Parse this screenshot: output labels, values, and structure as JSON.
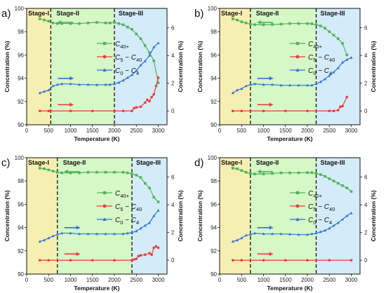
{
  "shared": {
    "xlabel": "Temperature (K)",
    "ylabel_left": "Concentration (%)",
    "ylabel_right": "Concentration (%)",
    "xlim": [
      0,
      3200
    ],
    "ylim_left": [
      90,
      100
    ],
    "ylim_right": [
      -1,
      7.4
    ],
    "x_ticks": [
      0,
      500,
      1000,
      1500,
      2000,
      2500,
      3000
    ],
    "y_left_ticks": [
      90,
      92,
      94,
      96,
      98,
      100
    ],
    "y_right_ticks": [
      0,
      2,
      4,
      6
    ],
    "stage_labels": [
      "Stage-I",
      "Stage-II",
      "Stage-III"
    ],
    "stage_colors": [
      "#f6efb2",
      "#d6f7c6",
      "#d4ebf9"
    ],
    "colors": {
      "c40": "#4fb35a",
      "c5": "#ec3b3b",
      "c0": "#2f72d6"
    },
    "legend": {
      "c40": {
        "base": "C",
        "sub": "40+"
      },
      "c5": {
        "base": "C",
        "sub1": "5",
        "mid": " ~ C",
        "sub2": "40"
      },
      "c0": {
        "base": "C",
        "sub1": "0",
        "mid": " ~ C",
        "sub2": "4"
      }
    }
  },
  "chart_data": [
    {
      "panel": "a)",
      "type": "line",
      "stage_boundaries": [
        550,
        2000
      ],
      "series": [
        {
          "name": "C40+",
          "axis": "left",
          "key": "c40",
          "points": [
            [
              300,
              99.1
            ],
            [
              400,
              99.0
            ],
            [
              500,
              98.9
            ],
            [
              600,
              98.75
            ],
            [
              700,
              98.7
            ],
            [
              800,
              98.7
            ],
            [
              1000,
              98.7
            ],
            [
              1200,
              98.7
            ],
            [
              1400,
              98.75
            ],
            [
              1600,
              98.8
            ],
            [
              1800,
              98.75
            ],
            [
              1900,
              98.75
            ],
            [
              2000,
              98.8
            ],
            [
              2100,
              98.7
            ],
            [
              2200,
              98.6
            ],
            [
              2300,
              98.4
            ],
            [
              2400,
              98.2
            ],
            [
              2500,
              97.8
            ],
            [
              2600,
              97.4
            ],
            [
              2700,
              96.8
            ],
            [
              2800,
              96.2
            ],
            [
              2900,
              95.5
            ],
            [
              3000,
              93.6
            ]
          ]
        },
        {
          "name": "C5 ~ C40",
          "axis": "right",
          "key": "c5",
          "points": [
            [
              300,
              0
            ],
            [
              500,
              0
            ],
            [
              1000,
              0
            ],
            [
              1500,
              0
            ],
            [
              2000,
              0
            ],
            [
              2200,
              0
            ],
            [
              2400,
              0
            ],
            [
              2450,
              0.2
            ],
            [
              2500,
              0.25
            ],
            [
              2600,
              0.3
            ],
            [
              2700,
              0.6
            ],
            [
              2750,
              0.8
            ],
            [
              2800,
              0.7
            ],
            [
              2850,
              1.0
            ],
            [
              2900,
              1.2
            ],
            [
              2950,
              1.8
            ],
            [
              3000,
              2.4
            ]
          ]
        },
        {
          "name": "C0 ~ C4",
          "axis": "right",
          "key": "c0",
          "points": [
            [
              300,
              1.3
            ],
            [
              400,
              1.4
            ],
            [
              500,
              1.5
            ],
            [
              600,
              1.8
            ],
            [
              700,
              1.9
            ],
            [
              800,
              1.95
            ],
            [
              1000,
              1.95
            ],
            [
              1200,
              1.9
            ],
            [
              1400,
              1.9
            ],
            [
              1600,
              1.88
            ],
            [
              1800,
              1.9
            ],
            [
              1900,
              1.9
            ],
            [
              2000,
              1.95
            ],
            [
              2100,
              2.05
            ],
            [
              2200,
              2.2
            ],
            [
              2300,
              2.4
            ],
            [
              2400,
              2.6
            ],
            [
              2500,
              2.9
            ],
            [
              2600,
              3.3
            ],
            [
              2700,
              3.6
            ],
            [
              2800,
              4.0
            ],
            [
              2900,
              4.6
            ],
            [
              3000,
              4.9
            ]
          ]
        }
      ]
    },
    {
      "panel": "b)",
      "type": "line",
      "stage_boundaries": [
        700,
        2200
      ],
      "series": [
        {
          "name": "C40+",
          "axis": "left",
          "key": "c40",
          "points": [
            [
              300,
              99.1
            ],
            [
              400,
              99.0
            ],
            [
              500,
              98.85
            ],
            [
              600,
              98.75
            ],
            [
              700,
              98.65
            ],
            [
              800,
              98.6
            ],
            [
              1000,
              98.6
            ],
            [
              1200,
              98.62
            ],
            [
              1400,
              98.65
            ],
            [
              1600,
              98.7
            ],
            [
              1800,
              98.7
            ],
            [
              2000,
              98.7
            ],
            [
              2100,
              98.68
            ],
            [
              2200,
              98.6
            ],
            [
              2300,
              98.5
            ],
            [
              2400,
              98.3
            ],
            [
              2500,
              98.0
            ],
            [
              2600,
              97.7
            ],
            [
              2700,
              97.4
            ],
            [
              2800,
              97.0
            ],
            [
              2900,
              96.0
            ]
          ]
        },
        {
          "name": "C5 ~ C40",
          "axis": "right",
          "key": "c5",
          "points": [
            [
              300,
              0
            ],
            [
              500,
              0
            ],
            [
              1000,
              0
            ],
            [
              1500,
              0
            ],
            [
              2000,
              0
            ],
            [
              2500,
              0
            ],
            [
              2600,
              0
            ],
            [
              2700,
              0.05
            ],
            [
              2750,
              0.3
            ],
            [
              2800,
              0.35
            ],
            [
              2900,
              1.0
            ]
          ]
        },
        {
          "name": "C0 ~ C4",
          "axis": "right",
          "key": "c0",
          "points": [
            [
              300,
              1.3
            ],
            [
              400,
              1.5
            ],
            [
              500,
              1.6
            ],
            [
              600,
              1.8
            ],
            [
              700,
              1.9
            ],
            [
              800,
              1.95
            ],
            [
              1000,
              1.9
            ],
            [
              1200,
              1.9
            ],
            [
              1400,
              1.85
            ],
            [
              1600,
              1.85
            ],
            [
              1800,
              1.85
            ],
            [
              2000,
              1.85
            ],
            [
              2100,
              1.85
            ],
            [
              2200,
              1.95
            ],
            [
              2300,
              2.1
            ],
            [
              2400,
              2.3
            ],
            [
              2500,
              2.55
            ],
            [
              2600,
              2.8
            ],
            [
              2700,
              3.1
            ],
            [
              2800,
              3.5
            ],
            [
              2900,
              3.7
            ],
            [
              3000,
              3.85
            ]
          ]
        }
      ]
    },
    {
      "panel": "c)",
      "type": "line",
      "stage_boundaries": [
        700,
        2400
      ],
      "series": [
        {
          "name": "C40+",
          "axis": "left",
          "key": "c40",
          "points": [
            [
              300,
              99.1
            ],
            [
              400,
              99.05
            ],
            [
              500,
              98.95
            ],
            [
              600,
              98.85
            ],
            [
              700,
              98.75
            ],
            [
              800,
              98.7
            ],
            [
              1000,
              98.7
            ],
            [
              1200,
              98.7
            ],
            [
              1400,
              98.75
            ],
            [
              1600,
              98.75
            ],
            [
              1800,
              98.75
            ],
            [
              2000,
              98.75
            ],
            [
              2200,
              98.75
            ],
            [
              2300,
              98.7
            ],
            [
              2400,
              98.6
            ],
            [
              2500,
              98.5
            ],
            [
              2600,
              98.3
            ],
            [
              2700,
              97.8
            ],
            [
              2800,
              97.4
            ],
            [
              2900,
              96.6
            ],
            [
              3000,
              96.2
            ]
          ]
        },
        {
          "name": "C5 ~ C40",
          "axis": "right",
          "key": "c5",
          "points": [
            [
              300,
              0
            ],
            [
              500,
              0
            ],
            [
              1000,
              0
            ],
            [
              1500,
              0
            ],
            [
              2000,
              0
            ],
            [
              2400,
              0
            ],
            [
              2450,
              0.05
            ],
            [
              2500,
              0.1
            ],
            [
              2550,
              0.3
            ],
            [
              2600,
              0.35
            ],
            [
              2700,
              0.4
            ],
            [
              2800,
              0.5
            ],
            [
              2850,
              0.4
            ],
            [
              2900,
              0.9
            ],
            [
              2950,
              1.0
            ],
            [
              3000,
              0.9
            ]
          ]
        },
        {
          "name": "C0 ~ C4",
          "axis": "right",
          "key": "c0",
          "points": [
            [
              300,
              1.35
            ],
            [
              400,
              1.45
            ],
            [
              500,
              1.6
            ],
            [
              600,
              1.75
            ],
            [
              700,
              1.85
            ],
            [
              800,
              1.95
            ],
            [
              1000,
              1.95
            ],
            [
              1200,
              1.9
            ],
            [
              1400,
              1.9
            ],
            [
              1600,
              1.9
            ],
            [
              1800,
              1.9
            ],
            [
              2000,
              1.9
            ],
            [
              2200,
              1.9
            ],
            [
              2300,
              1.95
            ],
            [
              2400,
              2.0
            ],
            [
              2500,
              2.1
            ],
            [
              2600,
              2.3
            ],
            [
              2700,
              2.5
            ],
            [
              2800,
              2.7
            ],
            [
              2900,
              3.2
            ],
            [
              3000,
              3.6
            ]
          ]
        }
      ]
    },
    {
      "panel": "d)",
      "type": "line",
      "stage_boundaries": [
        700,
        2200
      ],
      "series": [
        {
          "name": "C40+",
          "axis": "left",
          "key": "c40",
          "points": [
            [
              300,
              99.1
            ],
            [
              400,
              99.05
            ],
            [
              500,
              98.9
            ],
            [
              600,
              98.75
            ],
            [
              700,
              98.65
            ],
            [
              800,
              98.6
            ],
            [
              1000,
              98.6
            ],
            [
              1200,
              98.65
            ],
            [
              1400,
              98.7
            ],
            [
              1600,
              98.7
            ],
            [
              1800,
              98.7
            ],
            [
              2000,
              98.72
            ],
            [
              2100,
              98.72
            ],
            [
              2200,
              98.65
            ],
            [
              2300,
              98.55
            ],
            [
              2400,
              98.4
            ],
            [
              2500,
              98.2
            ],
            [
              2600,
              98.0
            ],
            [
              2700,
              97.8
            ],
            [
              2800,
              97.6
            ],
            [
              2900,
              97.4
            ],
            [
              3000,
              97.1
            ]
          ]
        },
        {
          "name": "C5 ~ C40",
          "axis": "right",
          "key": "c5",
          "points": [
            [
              300,
              0
            ],
            [
              500,
              0
            ],
            [
              1000,
              0
            ],
            [
              1500,
              0
            ],
            [
              2000,
              0
            ],
            [
              2500,
              0
            ],
            [
              3000,
              0
            ]
          ]
        },
        {
          "name": "C0 ~ C4",
          "axis": "right",
          "key": "c0",
          "points": [
            [
              300,
              1.35
            ],
            [
              400,
              1.45
            ],
            [
              500,
              1.6
            ],
            [
              600,
              1.8
            ],
            [
              700,
              1.85
            ],
            [
              800,
              1.95
            ],
            [
              1000,
              1.9
            ],
            [
              1200,
              1.9
            ],
            [
              1400,
              1.9
            ],
            [
              1600,
              1.88
            ],
            [
              1800,
              1.85
            ],
            [
              2000,
              1.85
            ],
            [
              2100,
              1.9
            ],
            [
              2200,
              1.95
            ],
            [
              2300,
              2.05
            ],
            [
              2400,
              2.15
            ],
            [
              2500,
              2.3
            ],
            [
              2600,
              2.5
            ],
            [
              2700,
              2.7
            ],
            [
              2800,
              2.95
            ],
            [
              2900,
              3.2
            ],
            [
              3000,
              3.4
            ]
          ]
        }
      ]
    }
  ]
}
